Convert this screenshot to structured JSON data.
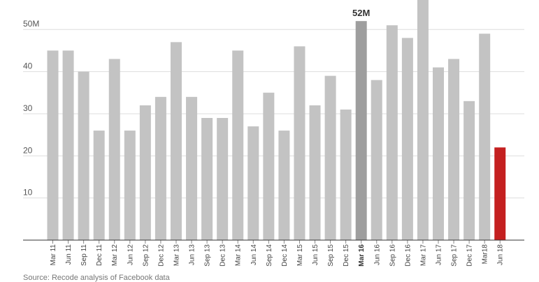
{
  "chart_data": {
    "type": "bar",
    "categories": [
      "Mar 11",
      "Jun 11",
      "Sep 11",
      "Dec 11",
      "Mar 12",
      "Jun 12",
      "Sep 12",
      "Dec 12",
      "Mar 13",
      "Jun 13",
      "Sep 13",
      "Dec 13",
      "Mar 14",
      "Jun 14",
      "Sep 14",
      "Dec 14",
      "Mar 15",
      "Jun 15",
      "Sep 15",
      "Dec 15",
      "Mar 16",
      "Jun 16",
      "Sep 16",
      "Dec 16",
      "Mar 17",
      "Jun 17",
      "Sep 17",
      "Dec 17",
      "Mar18",
      "Jun 18"
    ],
    "values": [
      45,
      45,
      40,
      26,
      43,
      26,
      32,
      34,
      47,
      34,
      29,
      29,
      45,
      27,
      35,
      26,
      46,
      32,
      39,
      31,
      52,
      38,
      51,
      48,
      57,
      41,
      43,
      33,
      49,
      22
    ],
    "ylim": [
      0,
      57
    ],
    "yticks": [
      10,
      20,
      30,
      40,
      50
    ],
    "ytick_labels": [
      "10",
      "20",
      "30",
      "40",
      "50M"
    ],
    "annotation": {
      "category": "Mar 16",
      "text": "52M"
    },
    "highlight_category": "Mar 16",
    "latest_category": "Jun 18",
    "grid": true,
    "colors": {
      "bar": "#c3c3c3",
      "highlight": "#9e9e9e",
      "latest": "#c42020",
      "grid": "#dddddd",
      "axis": "#333333"
    }
  },
  "source_text": "Source: Recode analysis of Facebook data"
}
